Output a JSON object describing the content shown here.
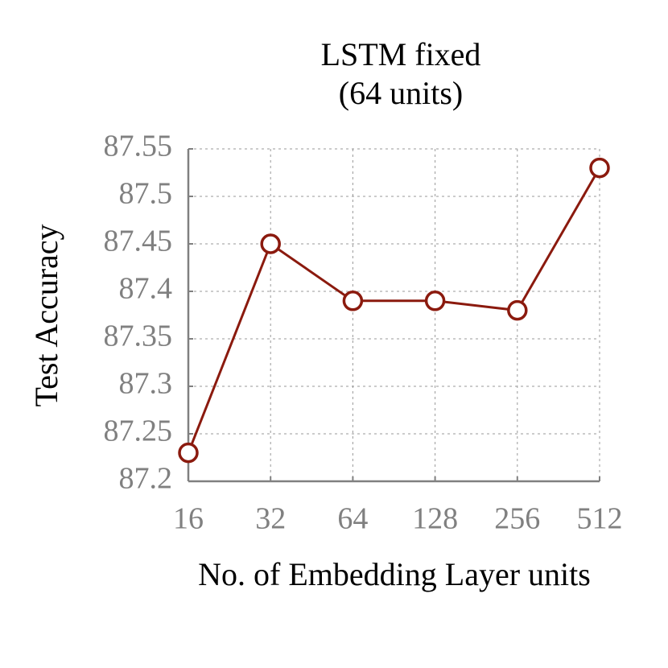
{
  "chart_data": {
    "type": "line",
    "title": "LSTM fixed",
    "subtitle": "(64 units)",
    "x_label": "No. of Embedding Layer units",
    "y_label": "Test Accuracy",
    "categories": [
      "16",
      "32",
      "64",
      "128",
      "256",
      "512"
    ],
    "values": [
      87.23,
      87.45,
      87.39,
      87.39,
      87.38,
      87.53
    ],
    "color": "#8b1a0e",
    "ylim": [
      87.2,
      87.55
    ],
    "yticks": [
      87.2,
      87.25,
      87.3,
      87.35,
      87.4,
      87.45,
      87.5,
      87.55
    ],
    "grid": true
  }
}
